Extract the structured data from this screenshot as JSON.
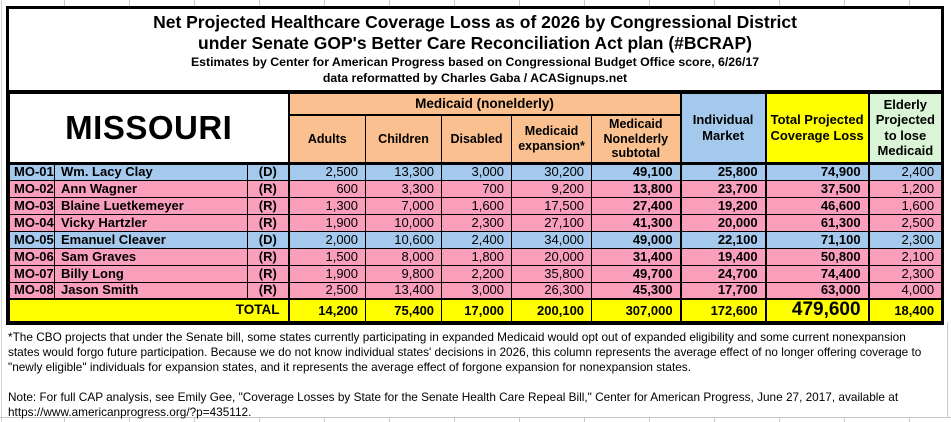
{
  "chart_data": {
    "type": "table",
    "title": "Net Projected Healthcare Coverage Loss as of 2026 by Congressional District",
    "subtitle": "under Senate GOP's Better Care Reconciliation Act plan (#BCRAP)",
    "credit1": "Estimates by Center for American Progress based on Congressional Budget Office score, 6/26/17",
    "credit2": "data reformatted by Charles Gaba / ACASignups.net",
    "state": "MISSOURI",
    "group_header": "Medicaid (nonelderly)",
    "sub_columns": [
      "Adults",
      "Children",
      "Disabled",
      "Medicaid expansion*",
      "Medicaid Nonelderly subtotal"
    ],
    "outer_columns": [
      "Individual Market",
      "Total Projected Coverage Loss",
      "Elderly Projected to lose Medicaid"
    ],
    "rows": [
      {
        "district": "MO-01",
        "rep": "Wm. Lacy Clay",
        "party": "(D)",
        "values": [
          "2,500",
          "13,300",
          "3,000",
          "30,200",
          "49,100",
          "25,800",
          "74,900",
          "2,400"
        ]
      },
      {
        "district": "MO-02",
        "rep": "Ann Wagner",
        "party": "(R)",
        "values": [
          "600",
          "3,300",
          "700",
          "9,200",
          "13,800",
          "23,700",
          "37,500",
          "1,200"
        ]
      },
      {
        "district": "MO-03",
        "rep": "Blaine Luetkemeyer",
        "party": "(R)",
        "values": [
          "1,300",
          "7,000",
          "1,600",
          "17,500",
          "27,400",
          "19,200",
          "46,600",
          "1,600"
        ]
      },
      {
        "district": "MO-04",
        "rep": "Vicky Hartzler",
        "party": "(R)",
        "values": [
          "1,900",
          "10,000",
          "2,300",
          "27,100",
          "41,300",
          "20,000",
          "61,300",
          "2,500"
        ]
      },
      {
        "district": "MO-05",
        "rep": "Emanuel Cleaver",
        "party": "(D)",
        "values": [
          "2,000",
          "10,600",
          "2,400",
          "34,000",
          "49,000",
          "22,100",
          "71,100",
          "2,300"
        ]
      },
      {
        "district": "MO-06",
        "rep": "Sam Graves",
        "party": "(R)",
        "values": [
          "1,500",
          "8,000",
          "1,800",
          "20,000",
          "31,400",
          "19,400",
          "50,800",
          "2,100"
        ]
      },
      {
        "district": "MO-07",
        "rep": "Billy Long",
        "party": "(R)",
        "values": [
          "1,900",
          "9,800",
          "2,200",
          "35,800",
          "49,700",
          "24,700",
          "74,400",
          "2,300"
        ]
      },
      {
        "district": "MO-08",
        "rep": "Jason Smith",
        "party": "(R)",
        "values": [
          "2,500",
          "13,400",
          "3,000",
          "26,300",
          "45,300",
          "17,700",
          "63,000",
          "4,000"
        ]
      }
    ],
    "total_label": "TOTAL",
    "totals": [
      "14,200",
      "75,400",
      "17,000",
      "200,100",
      "307,000",
      "172,600",
      "479,600",
      "18,400"
    ],
    "footnote": "*The CBO projects that under the Senate bill, some states currently participating in expanded Medicaid would opt out of expanded eligibility and some current nonexpansion states would forgo future participation. Because we do not know individual states' decisions in 2026, this column represents the average effect of no longer offering coverage to \"newly eligible\" individuals for expansion states, and it represents the average effect of forgone expansion for nonexpansion states.",
    "source_note": "Note: For full CAP analysis, see Emily Gee, \"Coverage Losses by State for the Senate Health Care Repeal Bill,\" Center for American Progress, June 27, 2017, available at https://www.americanprogress.org/?p=435112.",
    "colors": {
      "dem_row": "#A4C9EC",
      "rep_row": "#F99FBC",
      "medicaid_header": "#FAC090",
      "individual_market_header": "#A4C9EC",
      "total_loss_header": "#FFFF00",
      "elderly_header": "#D9F5D6",
      "total_row": "#FFFF00"
    }
  }
}
